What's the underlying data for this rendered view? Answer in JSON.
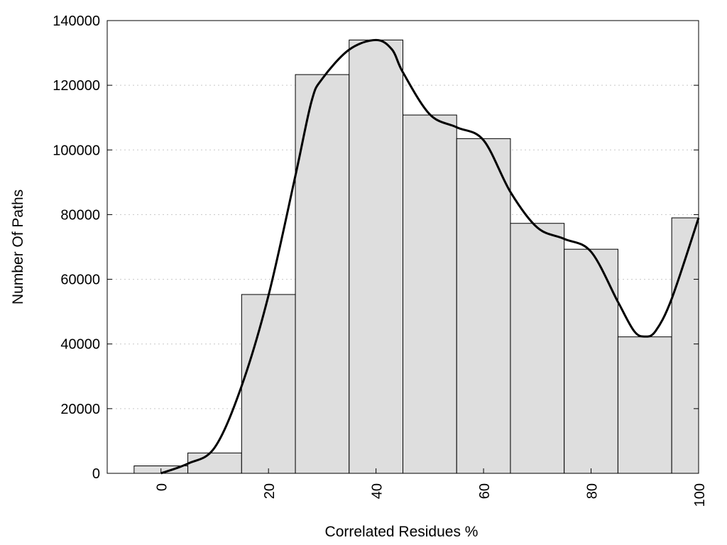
{
  "chart_data": {
    "type": "bar",
    "xlabel": "Correlated Residues %",
    "ylabel": "Number Of Paths",
    "xlim": [
      -10,
      100
    ],
    "ylim": [
      0,
      140000
    ],
    "x_ticks": [
      "0",
      "20",
      "40",
      "60",
      "80",
      "100"
    ],
    "y_ticks": [
      "0",
      "20000",
      "40000",
      "60000",
      "80000",
      "100000",
      "120000",
      "140000"
    ],
    "grid": "horizontal-dotted",
    "bars": [
      {
        "center": 0,
        "value": 2300
      },
      {
        "center": 10,
        "value": 6300
      },
      {
        "center": 20,
        "value": 55300
      },
      {
        "center": 30,
        "value": 123300
      },
      {
        "center": 40,
        "value": 134000
      },
      {
        "center": 50,
        "value": 110800
      },
      {
        "center": 60,
        "value": 103500
      },
      {
        "center": 70,
        "value": 77300
      },
      {
        "center": 80,
        "value": 69300
      },
      {
        "center": 90,
        "value": 42200
      },
      {
        "center": 100,
        "value": 79000
      }
    ],
    "bar_width": 10,
    "density_curve": {
      "x": [
        0,
        5,
        10,
        15,
        20,
        25,
        28,
        30,
        35,
        40,
        43,
        45,
        50,
        55,
        60,
        65,
        70,
        75,
        80,
        85,
        88,
        90,
        92,
        95,
        100
      ],
      "y": [
        0,
        3000,
        8000,
        27000,
        55000,
        92000,
        115000,
        122000,
        131000,
        134000,
        131000,
        124000,
        111000,
        107000,
        103000,
        87000,
        76000,
        72500,
        68500,
        53000,
        44000,
        42300,
        44000,
        54000,
        79000
      ]
    }
  }
}
